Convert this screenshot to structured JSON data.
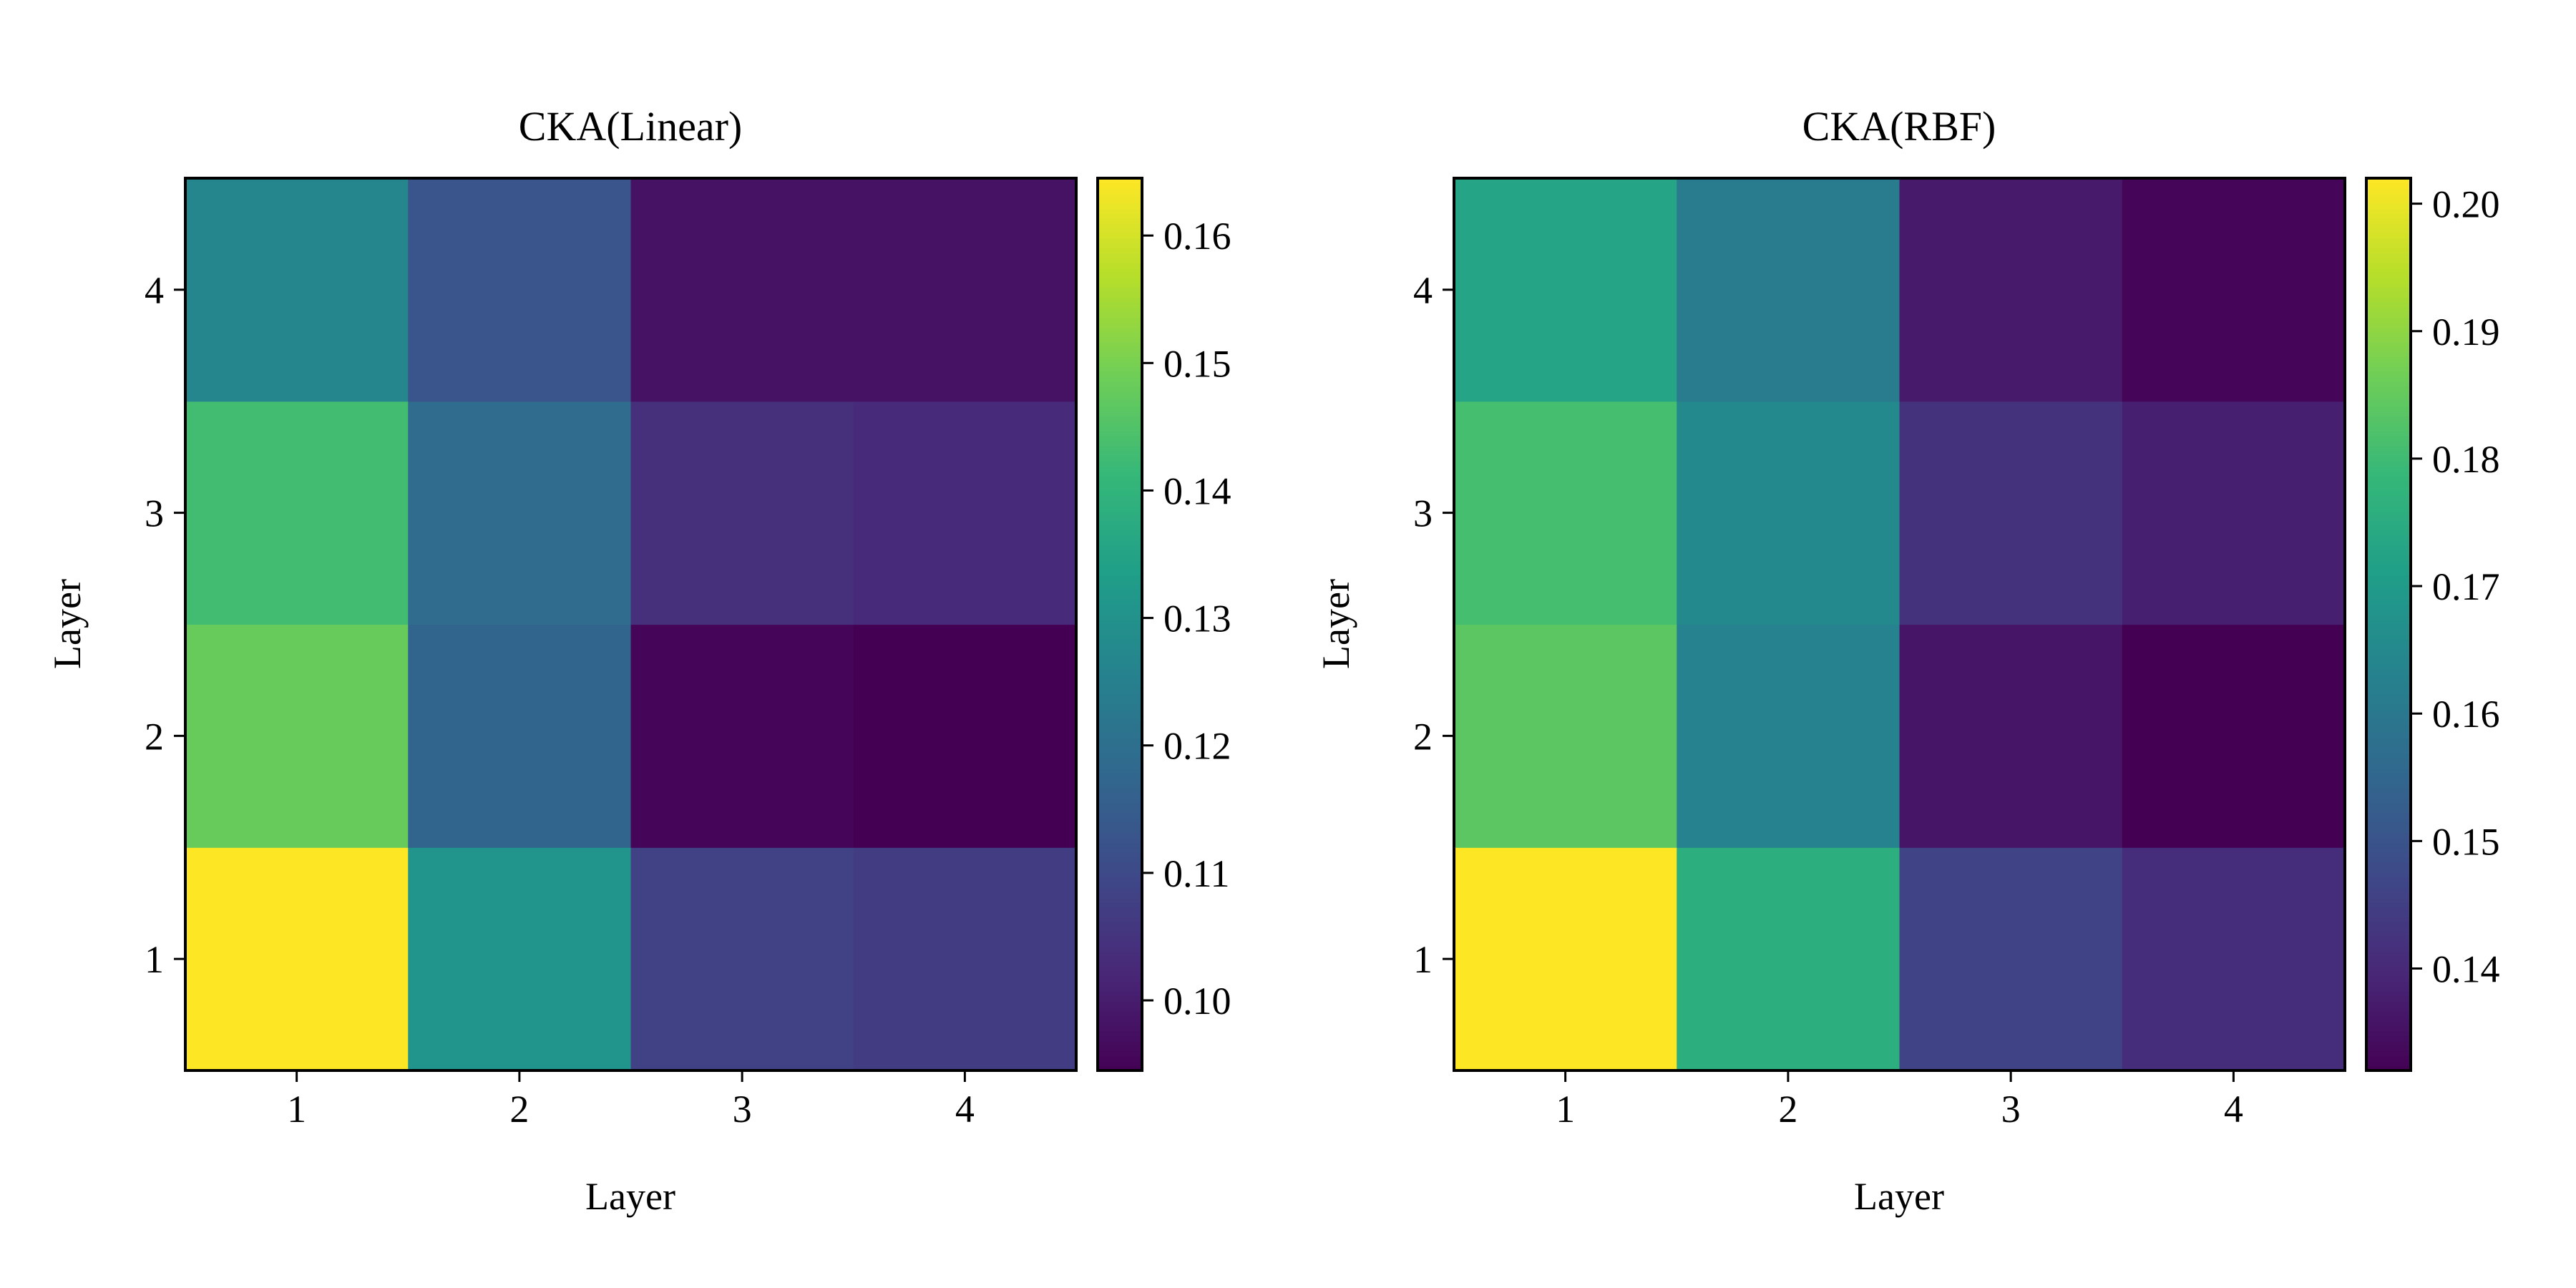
{
  "chart_data": [
    {
      "type": "heatmap",
      "title": "CKA(Linear)",
      "xlabel": "Layer",
      "ylabel": "Layer",
      "x_ticks": [
        "1",
        "2",
        "3",
        "4"
      ],
      "y_ticks": [
        "1",
        "2",
        "3",
        "4"
      ],
      "colormap": "viridis",
      "colorbar": {
        "vmin": 0.0945,
        "vmax": 0.1645,
        "ticks": [
          0.1,
          0.11,
          0.12,
          0.13,
          0.14,
          0.15,
          0.16
        ],
        "tick_labels": [
          "0.10",
          "0.11",
          "0.12",
          "0.13",
          "0.14",
          "0.15",
          "0.16"
        ]
      },
      "rows": [
        {
          "layer": "1",
          "values": [
            0.1645,
            0.131,
            0.108,
            0.107
          ]
        },
        {
          "layer": "2",
          "values": [
            0.148,
            0.117,
            0.0955,
            0.0945
          ]
        },
        {
          "layer": "3",
          "values": [
            0.143,
            0.119,
            0.104,
            0.103
          ]
        },
        {
          "layer": "4",
          "values": [
            0.127,
            0.113,
            0.098,
            0.098
          ]
        }
      ]
    },
    {
      "type": "heatmap",
      "title": "CKA(RBF)",
      "xlabel": "Layer",
      "ylabel": "Layer",
      "x_ticks": [
        "1",
        "2",
        "3",
        "4"
      ],
      "y_ticks": [
        "1",
        "2",
        "3",
        "4"
      ],
      "colormap": "viridis",
      "colorbar": {
        "vmin": 0.132,
        "vmax": 0.202,
        "ticks": [
          0.14,
          0.15,
          0.16,
          0.17,
          0.18,
          0.19,
          0.2
        ],
        "tick_labels": [
          "0.14",
          "0.15",
          "0.16",
          "0.17",
          "0.18",
          "0.19",
          "0.20"
        ]
      },
      "rows": [
        {
          "layer": "1",
          "values": [
            0.202,
            0.176,
            0.146,
            0.141
          ]
        },
        {
          "layer": "2",
          "values": [
            0.184,
            0.163,
            0.136,
            0.132
          ]
        },
        {
          "layer": "3",
          "values": [
            0.181,
            0.165,
            0.142,
            0.138
          ]
        },
        {
          "layer": "4",
          "values": [
            0.173,
            0.161,
            0.137,
            0.133
          ]
        }
      ]
    }
  ]
}
